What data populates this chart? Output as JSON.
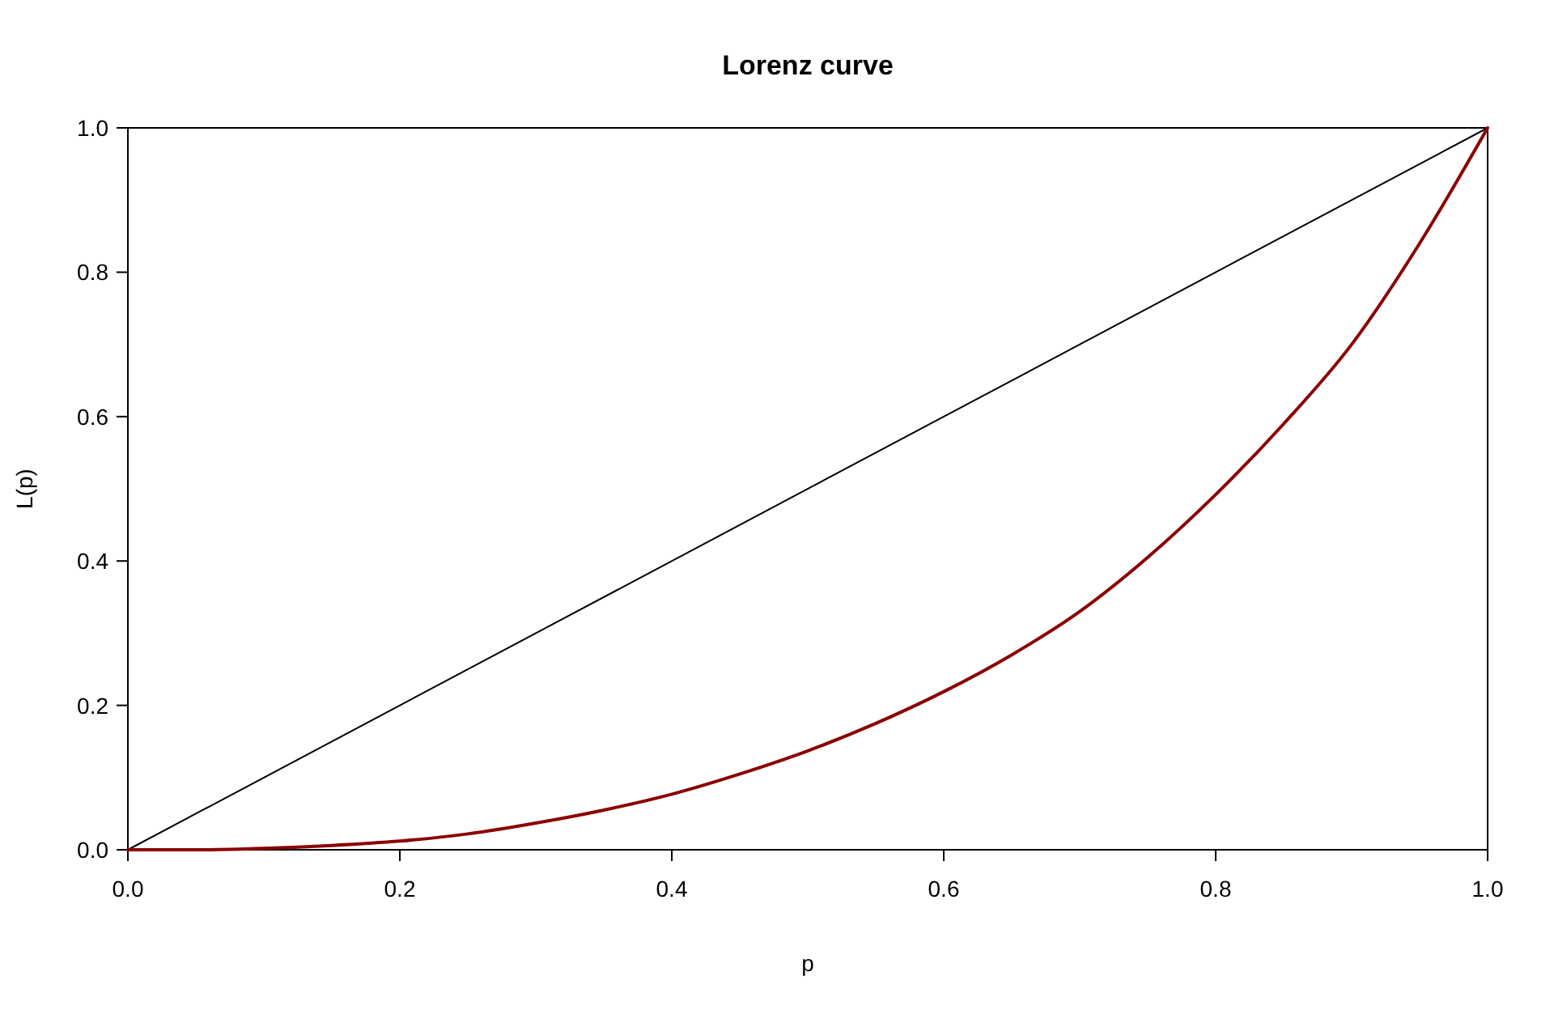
{
  "chart_data": {
    "type": "line",
    "title": "Lorenz curve",
    "xlabel": "p",
    "ylabel": "L(p)",
    "x": [
      0,
      0.05,
      0.1,
      0.15,
      0.2,
      0.25,
      0.3,
      0.35,
      0.4,
      0.45,
      0.5,
      0.55,
      0.6,
      0.65,
      0.7,
      0.75,
      0.8,
      0.85,
      0.9,
      0.95,
      1
    ],
    "series": [
      {
        "color": "#000000",
        "x": [
          0,
          1
        ],
        "values": [
          0,
          1
        ]
      },
      {
        "color": "#8b0000",
        "values": [
          0,
          0,
          0.002,
          0.006,
          0.012,
          0.022,
          0.037,
          0.055,
          0.077,
          0.105,
          0.137,
          0.175,
          0.219,
          0.27,
          0.33,
          0.405,
          0.492,
          0.59,
          0.7,
          0.84,
          1
        ]
      }
    ],
    "xlim": [
      0,
      1
    ],
    "ylim": [
      0,
      1
    ],
    "xticks": [
      {
        "value": 0,
        "label": "0.0"
      },
      {
        "value": 0.2,
        "label": "0.2"
      },
      {
        "value": 0.4,
        "label": "0.4"
      },
      {
        "value": 0.6,
        "label": "0.6"
      },
      {
        "value": 0.8,
        "label": "0.8"
      },
      {
        "value": 1,
        "label": "1.0"
      }
    ],
    "yticks": [
      {
        "value": 0,
        "label": "0.0"
      },
      {
        "value": 0.2,
        "label": "0.2"
      },
      {
        "value": 0.4,
        "label": "0.4"
      },
      {
        "value": 0.6,
        "label": "0.6"
      },
      {
        "value": 0.8,
        "label": "0.8"
      },
      {
        "value": 1,
        "label": "1.0"
      }
    ],
    "grid": false,
    "marker": "none",
    "line_style": "solid"
  }
}
